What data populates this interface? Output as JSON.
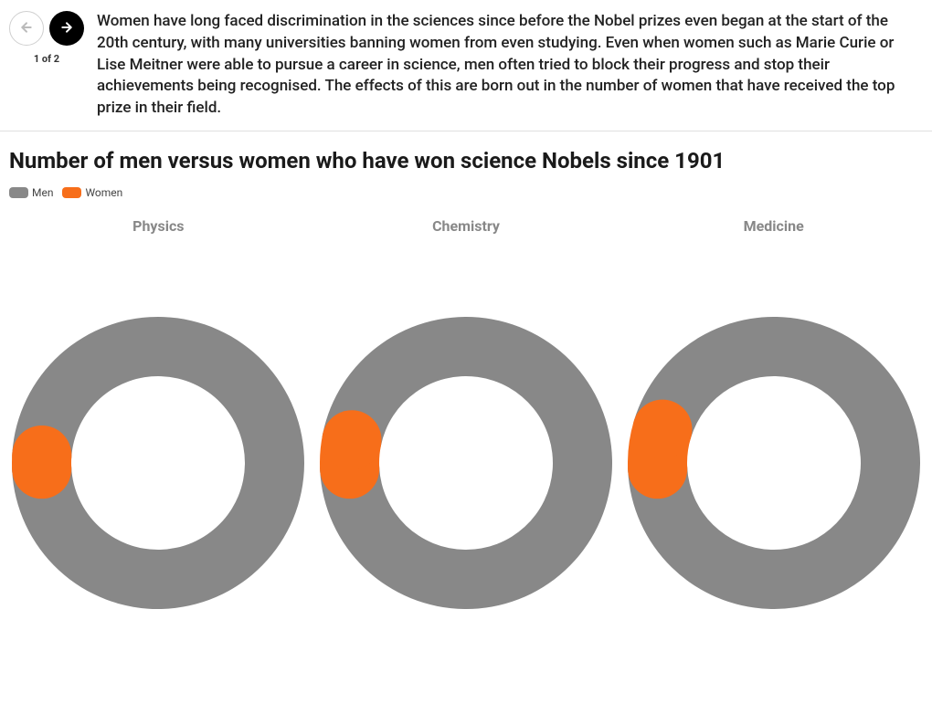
{
  "nav": {
    "counter": "1 of 2",
    "prev_enabled": false,
    "next_enabled": true
  },
  "intro": "Women have long faced discrimination in the sciences since before the Nobel prizes even began at the start of the 20th century, with many universities banning women from even studying. Even when women such as Marie Curie or Lise Meitner were able to pursue a career in science, men often tried to block their progress and stop their achievements being recognised. The effects of this are born out in the number of women that have received the top prize in their field.",
  "chart": {
    "title": "Number of men versus women who have won science Nobels since 1901",
    "type": "donut",
    "legend": [
      {
        "label": "Men",
        "color": "#888888"
      },
      {
        "label": "Women",
        "color": "#f76e1a"
      }
    ],
    "categories": [
      {
        "label": "Physics",
        "men_pct": 98.1,
        "women_pct": 1.9
      },
      {
        "label": "Chemistry",
        "men_pct": 96.0,
        "women_pct": 4.0
      },
      {
        "label": "Medicine",
        "men_pct": 94.5,
        "women_pct": 5.5
      }
    ],
    "styling": {
      "men_color": "#888888",
      "women_color": "#f76e1a",
      "inner_radius": 95,
      "outer_radius": 160,
      "background_color": "#ffffff",
      "category_label_color": "#888888",
      "category_label_fontsize": 16,
      "title_fontsize": 24,
      "title_color": "#1a1a1a",
      "gap_between_segments_deg": 0,
      "start_angle_deg": -93
    }
  }
}
